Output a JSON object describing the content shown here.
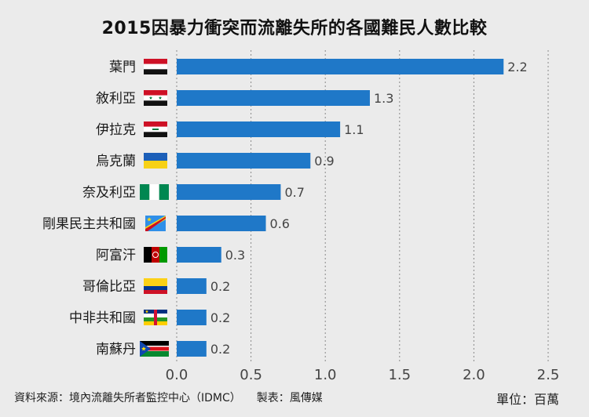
{
  "chart_data": {
    "type": "bar",
    "orientation": "horizontal",
    "title": "2015因暴力衝突而流離失所的各國難民人數比較",
    "categories": [
      "葉門",
      "敘利亞",
      "伊拉克",
      "烏克蘭",
      "奈及利亞",
      "剛果民主共和國",
      "阿富汗",
      "哥倫比亞",
      "中非共和國",
      "南蘇丹"
    ],
    "values": [
      2.2,
      1.3,
      1.1,
      0.9,
      0.7,
      0.6,
      0.3,
      0.2,
      0.2,
      0.2
    ],
    "value_labels": [
      "2.2",
      "1.3",
      "1.1",
      "0.9",
      "0.7",
      "0.6",
      "0.3",
      "0.2",
      "0.2",
      "0.2"
    ],
    "flags": [
      "yemen-flag-icon",
      "syria-flag-icon",
      "iraq-flag-icon",
      "ukraine-flag-icon",
      "nigeria-flag-icon",
      "drc-flag-icon",
      "afghanistan-flag-icon",
      "colombia-flag-icon",
      "car-flag-icon",
      "south-sudan-flag-icon"
    ],
    "xlim": [
      0,
      2.5
    ],
    "xticks": [
      0.0,
      0.5,
      1.0,
      1.5,
      2.0,
      2.5
    ],
    "xtick_labels": [
      "0.0",
      "0.5",
      "1.0",
      "1.5",
      "2.0",
      "2.5"
    ],
    "xlabel": "",
    "ylabel": "",
    "grid": "vertical dotted",
    "bar_color": "#1f78c8",
    "unit": "單位：百萬"
  },
  "footer": {
    "source": "資料來源：境內流離失所者監控中心（IDMC）",
    "maker": "製表：風傳媒",
    "unit": "單位：百萬"
  }
}
